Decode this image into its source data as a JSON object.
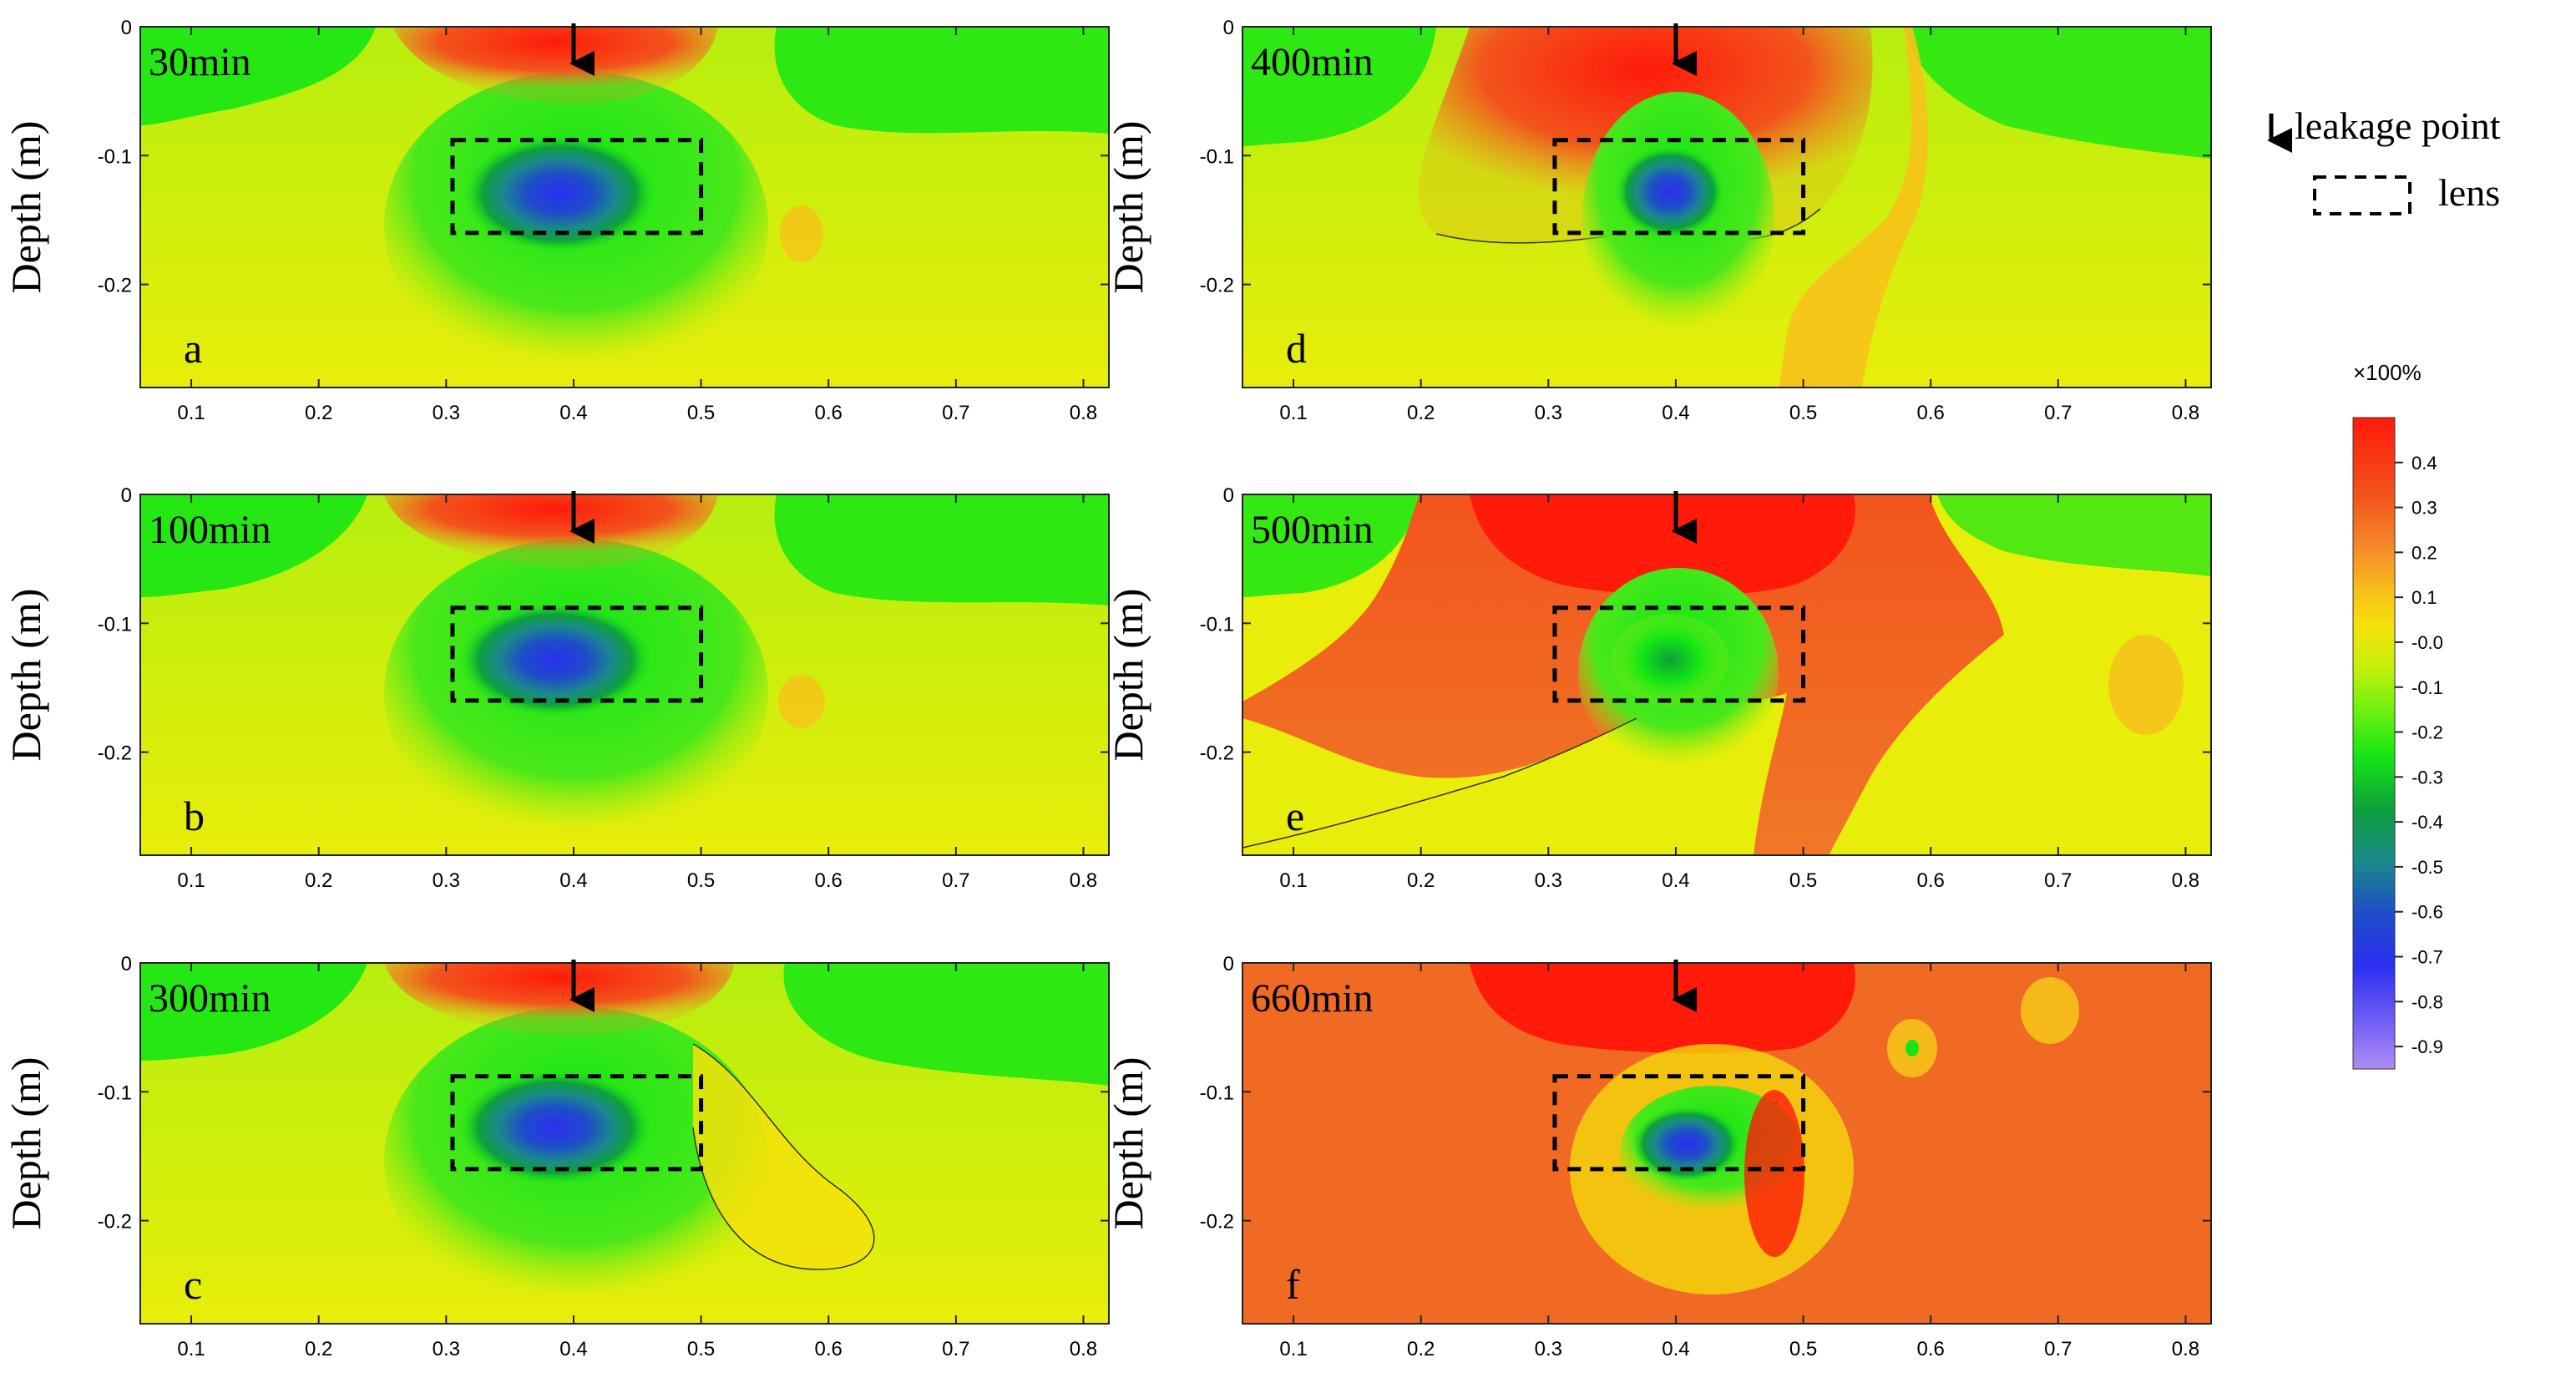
{
  "figure": {
    "depth_axis_label": "Depth (m)",
    "legend": {
      "arrow_label": "leakage point",
      "box_label": "lens"
    },
    "colorbar": {
      "title": "×100%",
      "ticks": [
        "0.4",
        "0.3",
        "0.2",
        "0.1",
        "-0.0",
        "-0.1",
        "-0.2",
        "-0.3",
        "-0.4",
        "-0.5",
        "-0.6",
        "-0.7",
        "-0.8",
        "-0.9"
      ],
      "values": [
        0.4,
        0.3,
        0.2,
        0.1,
        0.0,
        -0.1,
        -0.2,
        -0.3,
        -0.4,
        -0.5,
        -0.6,
        -0.7,
        -0.8,
        -0.9
      ],
      "range": [
        -0.95,
        0.5
      ]
    },
    "colors": {
      "red": "#ff1a0a",
      "orange_red": "#f2541c",
      "orange": "#f58a2a",
      "yellow": "#f5e20a",
      "lime": "#c8f00a",
      "green": "#14e614",
      "dark_green": "#0fa03c",
      "teal": "#1a8a8a",
      "blue": "#2a3ec8",
      "violet": "#b08cf5"
    }
  },
  "chart_data": [
    {
      "type": "heatmap",
      "panel": "a",
      "time_label": "30min",
      "x_ticks": [
        "0.1",
        "0.2",
        "0.3",
        "0.4",
        "0.5",
        "0.6",
        "0.7",
        "0.8"
      ],
      "y_ticks": [
        "0",
        "-0.1",
        "-0.2"
      ],
      "xlim": [
        0.06,
        0.82
      ],
      "ylim": [
        -0.28,
        0
      ],
      "ylabel": "Depth (m)",
      "leakage_point_x": 0.4,
      "lens_box": {
        "x": [
          0.305,
          0.5
        ],
        "y": [
          -0.16,
          -0.088
        ]
      },
      "min_value": -0.6,
      "max_value": 0.3
    },
    {
      "type": "heatmap",
      "panel": "b",
      "time_label": "100min",
      "x_ticks": [
        "0.1",
        "0.2",
        "0.3",
        "0.4",
        "0.5",
        "0.6",
        "0.7",
        "0.8"
      ],
      "y_ticks": [
        "0",
        "-0.1",
        "-0.2"
      ],
      "xlim": [
        0.06,
        0.82
      ],
      "ylim": [
        -0.28,
        0
      ],
      "ylabel": "Depth (m)",
      "leakage_point_x": 0.4,
      "lens_box": {
        "x": [
          0.305,
          0.5
        ],
        "y": [
          -0.16,
          -0.088
        ]
      },
      "min_value": -0.6,
      "max_value": 0.3
    },
    {
      "type": "heatmap",
      "panel": "c",
      "time_label": "300min",
      "x_ticks": [
        "0.1",
        "0.2",
        "0.3",
        "0.4",
        "0.5",
        "0.6",
        "0.7",
        "0.8"
      ],
      "y_ticks": [
        "0",
        "-0.1",
        "-0.2"
      ],
      "xlim": [
        0.06,
        0.82
      ],
      "ylim": [
        -0.28,
        0
      ],
      "ylabel": "Depth (m)",
      "leakage_point_x": 0.4,
      "lens_box": {
        "x": [
          0.305,
          0.5
        ],
        "y": [
          -0.16,
          -0.088
        ]
      },
      "min_value": -0.6,
      "max_value": 0.3
    },
    {
      "type": "heatmap",
      "panel": "d",
      "time_label": "400min",
      "x_ticks": [
        "0.1",
        "0.2",
        "0.3",
        "0.4",
        "0.5",
        "0.6",
        "0.7",
        "0.8"
      ],
      "y_ticks": [
        "0",
        "-0.1",
        "-0.2"
      ],
      "xlim": [
        0.06,
        0.82
      ],
      "ylim": [
        -0.28,
        0
      ],
      "ylabel": "Depth (m)",
      "leakage_point_x": 0.4,
      "lens_box": {
        "x": [
          0.305,
          0.5
        ],
        "y": [
          -0.16,
          -0.088
        ]
      },
      "min_value": -0.5,
      "max_value": 0.4
    },
    {
      "type": "heatmap",
      "panel": "e",
      "time_label": "500min",
      "x_ticks": [
        "0.1",
        "0.2",
        "0.3",
        "0.4",
        "0.5",
        "0.6",
        "0.7",
        "0.8"
      ],
      "y_ticks": [
        "0",
        "-0.1",
        "-0.2"
      ],
      "xlim": [
        0.06,
        0.82
      ],
      "ylim": [
        -0.28,
        0
      ],
      "ylabel": "Depth (m)",
      "leakage_point_x": 0.4,
      "lens_box": {
        "x": [
          0.305,
          0.5
        ],
        "y": [
          -0.16,
          -0.088
        ]
      },
      "min_value": -0.4,
      "max_value": 0.4
    },
    {
      "type": "heatmap",
      "panel": "f",
      "time_label": "660min",
      "x_ticks": [
        "0.1",
        "0.2",
        "0.3",
        "0.4",
        "0.5",
        "0.6",
        "0.7",
        "0.8"
      ],
      "y_ticks": [
        "0",
        "-0.1",
        "-0.2"
      ],
      "xlim": [
        0.06,
        0.82
      ],
      "ylim": [
        -0.28,
        0
      ],
      "ylabel": "Depth (m)",
      "leakage_point_x": 0.4,
      "lens_box": {
        "x": [
          0.305,
          0.5
        ],
        "y": [
          -0.16,
          -0.088
        ]
      },
      "min_value": -0.5,
      "max_value": 0.4
    }
  ]
}
